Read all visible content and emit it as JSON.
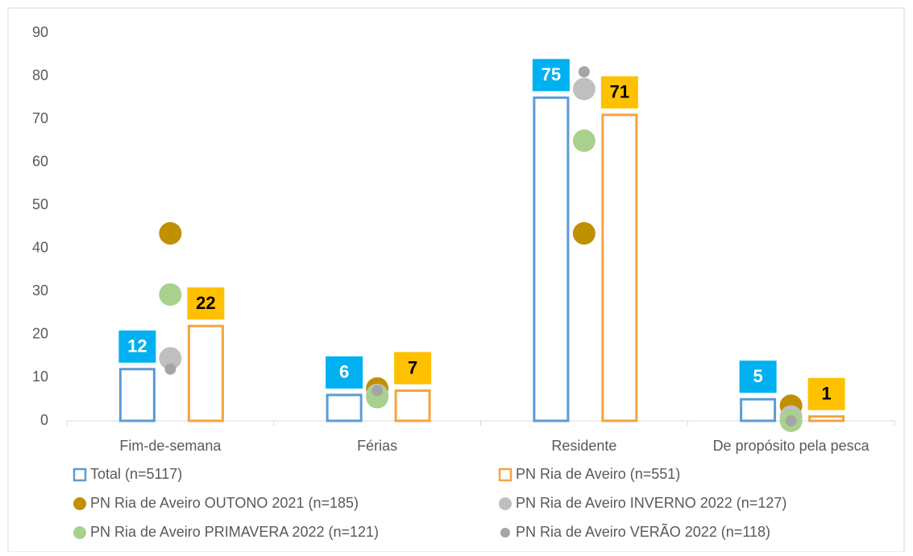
{
  "chart_data": {
    "type": "bar",
    "categories": [
      "Fim-de-semana",
      "Férias",
      "Residente",
      "De propósito pela pesca"
    ],
    "ylim": [
      0,
      90
    ],
    "yticks": [
      0,
      10,
      20,
      30,
      40,
      50,
      60,
      70,
      80,
      90
    ],
    "grid": false,
    "legend": "bottom",
    "series": [
      {
        "name": "Total (n=5117)",
        "type": "bar",
        "color": "#5b9bd5",
        "label_color": "#00b0f0",
        "label_text_color": "#ffffff",
        "values": [
          12,
          6,
          75,
          5
        ]
      },
      {
        "name": "PN Ria de Aveiro (n=551)",
        "type": "bar",
        "color": "#f5a33d",
        "label_color": "#ffc000",
        "label_text_color": "#000000",
        "values": [
          22,
          7,
          71,
          1
        ]
      },
      {
        "name": "PN Ria de Aveiro OUTONO 2021 (n=185)",
        "type": "scatter",
        "color": "#bf9000",
        "marker_size": 14,
        "values": [
          43.5,
          7.5,
          43.5,
          3.5
        ]
      },
      {
        "name": "PN Ria de Aveiro INVERNO 2022 (n=127)",
        "type": "scatter",
        "color": "#bfbfbf",
        "marker_size": 14,
        "values": [
          14.5,
          6,
          77,
          1
        ]
      },
      {
        "name": "PN Ria de Aveiro PRIMAVERA 2022 (n=121)",
        "type": "scatter",
        "color": "#a9d18e",
        "marker_size": 14,
        "values": [
          29.3,
          5.5,
          65,
          0
        ]
      },
      {
        "name": "PN Ria de Aveiro VERÃO 2022 (n=118)",
        "type": "scatter",
        "color": "#a5a5a5",
        "marker_size": 7,
        "values": [
          12,
          7,
          81,
          0
        ]
      }
    ]
  }
}
